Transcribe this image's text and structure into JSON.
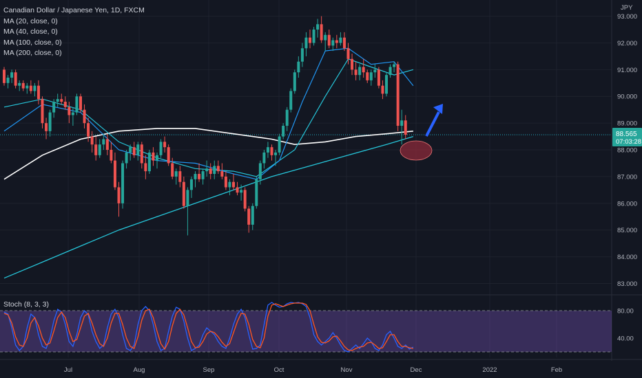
{
  "legend": {
    "title": "Canadian Dollar / Japanese Yen, 1D, FXCM",
    "ma20": "MA (20, close, 0)",
    "ma40": "MA (40, close, 0)",
    "ma100": "MA (100, close, 0)",
    "ma200": "MA (200, close, 0)"
  },
  "price_scale": {
    "unit": "JPY",
    "last_price": "88.565",
    "countdown": "07:03:28"
  },
  "stoch": {
    "label": "Stoch (8, 3, 3)"
  },
  "colors": {
    "up": "#26a69a",
    "down": "#ef5350",
    "ma20": "#2196f3",
    "ma40": "#26c6da",
    "ma100": "#ffffff",
    "ma200": "#26c6da",
    "stoch_k": "#2962ff",
    "stoch_d": "#ff5722",
    "stoch_band": "#7e57c2",
    "annotation_arrow": "#2962ff",
    "annotation_ellipse": "#8b2a3a"
  },
  "chart_data": {
    "type": "candlestick",
    "title": "Canadian Dollar / Japanese Yen, 1D, FXCM",
    "y_ticks": [
      "93.000",
      "92.000",
      "91.000",
      "90.000",
      "89.000",
      "88.000",
      "87.000",
      "86.000",
      "85.000",
      "84.000",
      "83.000"
    ],
    "y_tick_values": [
      93,
      92,
      91,
      90,
      89,
      88,
      87,
      86,
      85,
      84,
      83
    ],
    "ylim": [
      82.55,
      93.4
    ],
    "x_ticks": [
      "Jul",
      "Aug",
      "Sep",
      "Oct",
      "Nov",
      "Dec",
      "2022",
      "Feb"
    ],
    "candles": [
      [
        91.0,
        91.1,
        90.4,
        90.5
      ],
      [
        90.5,
        90.8,
        90.3,
        90.7
      ],
      [
        90.7,
        91.0,
        90.5,
        90.9
      ],
      [
        90.9,
        91.0,
        90.3,
        90.4
      ],
      [
        90.4,
        90.6,
        90.2,
        90.5
      ],
      [
        90.5,
        90.6,
        90.2,
        90.3
      ],
      [
        90.3,
        90.5,
        90.1,
        90.4
      ],
      [
        90.4,
        90.6,
        90.1,
        90.2
      ],
      [
        90.2,
        90.5,
        90.0,
        90.4
      ],
      [
        90.4,
        90.6,
        89.7,
        89.9
      ],
      [
        89.9,
        90.0,
        88.8,
        89.0
      ],
      [
        89.0,
        89.2,
        88.4,
        88.7
      ],
      [
        88.7,
        89.5,
        88.5,
        89.4
      ],
      [
        89.4,
        89.9,
        89.2,
        89.8
      ],
      [
        89.8,
        90.1,
        89.6,
        89.9
      ],
      [
        89.9,
        90.1,
        89.7,
        89.8
      ],
      [
        89.8,
        90.0,
        89.5,
        89.6
      ],
      [
        89.6,
        89.8,
        89.0,
        89.3
      ],
      [
        89.3,
        89.6,
        88.9,
        89.4
      ],
      [
        89.4,
        90.1,
        89.3,
        90.0
      ],
      [
        90.0,
        90.1,
        89.4,
        89.5
      ],
      [
        89.5,
        89.7,
        88.8,
        89.0
      ],
      [
        89.0,
        89.2,
        88.3,
        88.5
      ],
      [
        88.5,
        88.7,
        87.9,
        88.2
      ],
      [
        88.2,
        88.5,
        87.6,
        87.8
      ],
      [
        87.8,
        88.4,
        87.7,
        88.2
      ],
      [
        88.2,
        88.6,
        88.0,
        88.4
      ],
      [
        88.4,
        88.6,
        87.8,
        88.0
      ],
      [
        88.0,
        88.3,
        87.5,
        87.6
      ],
      [
        87.6,
        87.9,
        86.5,
        86.6
      ],
      [
        86.6,
        86.8,
        85.5,
        86.0
      ],
      [
        86.0,
        87.6,
        85.8,
        87.5
      ],
      [
        87.5,
        88.0,
        87.3,
        87.9
      ],
      [
        87.9,
        88.2,
        87.6,
        88.1
      ],
      [
        88.1,
        88.3,
        87.7,
        87.8
      ],
      [
        87.8,
        88.3,
        87.6,
        88.2
      ],
      [
        88.2,
        88.3,
        87.3,
        87.5
      ],
      [
        87.5,
        87.8,
        86.9,
        87.2
      ],
      [
        87.2,
        88.0,
        87.1,
        87.9
      ],
      [
        87.9,
        88.1,
        87.4,
        87.6
      ],
      [
        87.6,
        87.9,
        87.3,
        87.8
      ],
      [
        87.8,
        88.4,
        87.7,
        88.3
      ],
      [
        88.3,
        88.5,
        87.9,
        88.1
      ],
      [
        88.1,
        88.2,
        87.4,
        87.5
      ],
      [
        87.5,
        87.7,
        86.9,
        87.0
      ],
      [
        87.0,
        87.3,
        86.7,
        87.2
      ],
      [
        87.2,
        87.4,
        86.6,
        86.8
      ],
      [
        86.8,
        87.0,
        85.8,
        85.9
      ],
      [
        85.9,
        86.6,
        84.8,
        86.5
      ],
      [
        86.5,
        87.0,
        86.2,
        86.9
      ],
      [
        86.9,
        87.2,
        86.6,
        87.1
      ],
      [
        87.1,
        87.5,
        86.8,
        86.9
      ],
      [
        86.9,
        87.3,
        86.7,
        87.2
      ],
      [
        87.2,
        87.6,
        87.0,
        87.3
      ],
      [
        87.3,
        87.5,
        86.9,
        87.1
      ],
      [
        87.1,
        87.6,
        86.9,
        87.4
      ],
      [
        87.4,
        87.6,
        87.1,
        87.2
      ],
      [
        87.2,
        87.5,
        86.9,
        87.0
      ],
      [
        87.0,
        87.2,
        86.5,
        86.6
      ],
      [
        86.6,
        86.9,
        86.3,
        86.8
      ],
      [
        86.8,
        87.1,
        86.5,
        86.6
      ],
      [
        86.6,
        86.8,
        86.3,
        86.4
      ],
      [
        86.4,
        86.7,
        86.1,
        86.5
      ],
      [
        86.5,
        86.6,
        85.7,
        85.8
      ],
      [
        85.8,
        85.9,
        84.9,
        85.2
      ],
      [
        85.2,
        86.0,
        85.0,
        85.9
      ],
      [
        85.9,
        87.0,
        85.8,
        86.9
      ],
      [
        86.9,
        87.6,
        86.7,
        87.5
      ],
      [
        87.5,
        88.0,
        87.3,
        87.9
      ],
      [
        87.9,
        88.3,
        87.7,
        88.1
      ],
      [
        88.1,
        88.2,
        87.6,
        87.8
      ],
      [
        87.8,
        88.0,
        87.4,
        87.9
      ],
      [
        87.9,
        88.6,
        87.8,
        88.5
      ],
      [
        88.5,
        89.0,
        88.4,
        88.9
      ],
      [
        88.9,
        89.6,
        88.7,
        89.5
      ],
      [
        89.5,
        90.3,
        89.4,
        90.2
      ],
      [
        90.2,
        91.0,
        90.1,
        90.9
      ],
      [
        90.9,
        91.5,
        90.7,
        91.3
      ],
      [
        91.3,
        92.0,
        91.1,
        91.8
      ],
      [
        91.8,
        92.4,
        91.5,
        92.2
      ],
      [
        92.2,
        92.5,
        91.8,
        92.0
      ],
      [
        92.0,
        92.6,
        91.9,
        92.5
      ],
      [
        92.5,
        92.9,
        92.2,
        92.7
      ],
      [
        92.7,
        93.0,
        92.0,
        92.1
      ],
      [
        92.1,
        92.4,
        91.7,
        92.3
      ],
      [
        92.3,
        92.5,
        91.8,
        91.9
      ],
      [
        91.9,
        92.2,
        91.7,
        92.1
      ],
      [
        92.1,
        92.3,
        91.8,
        92.0
      ],
      [
        92.0,
        92.4,
        91.9,
        92.2
      ],
      [
        92.2,
        92.4,
        91.7,
        91.8
      ],
      [
        91.8,
        92.0,
        91.2,
        91.4
      ],
      [
        91.4,
        91.6,
        90.8,
        91.0
      ],
      [
        91.0,
        91.3,
        90.6,
        90.8
      ],
      [
        90.8,
        91.2,
        90.6,
        91.1
      ],
      [
        91.1,
        91.4,
        90.7,
        90.9
      ],
      [
        90.9,
        91.0,
        90.5,
        90.6
      ],
      [
        90.6,
        91.0,
        90.4,
        90.9
      ],
      [
        90.9,
        91.2,
        90.7,
        91.0
      ],
      [
        91.0,
        91.1,
        90.3,
        90.4
      ],
      [
        90.4,
        90.6,
        89.9,
        90.1
      ],
      [
        90.1,
        90.9,
        90.0,
        90.8
      ],
      [
        90.8,
        91.2,
        90.7,
        91.1
      ],
      [
        91.1,
        91.3,
        90.9,
        91.2
      ],
      [
        91.2,
        91.3,
        88.7,
        88.9
      ],
      [
        88.9,
        89.5,
        88.2,
        89.1
      ],
      [
        89.1,
        89.3,
        88.4,
        88.565
      ]
    ],
    "ma20": [
      [
        0,
        88.7
      ],
      [
        10,
        89.7
      ],
      [
        20,
        89.4
      ],
      [
        30,
        88.0
      ],
      [
        40,
        87.6
      ],
      [
        50,
        87.5
      ],
      [
        60,
        87.1
      ],
      [
        66,
        86.9
      ],
      [
        72,
        87.6
      ],
      [
        78,
        89.8
      ],
      [
        84,
        91.7
      ],
      [
        90,
        91.8
      ],
      [
        96,
        91.2
      ],
      [
        102,
        91.3
      ],
      [
        107,
        90.4
      ]
    ],
    "ma40": [
      [
        0,
        89.6
      ],
      [
        10,
        89.9
      ],
      [
        20,
        89.5
      ],
      [
        30,
        88.3
      ],
      [
        40,
        87.7
      ],
      [
        50,
        87.3
      ],
      [
        60,
        87.2
      ],
      [
        66,
        87.0
      ],
      [
        76,
        88.0
      ],
      [
        84,
        90.0
      ],
      [
        90,
        91.4
      ],
      [
        96,
        91.1
      ],
      [
        102,
        90.8
      ],
      [
        107,
        91.0
      ]
    ],
    "ma100": [
      [
        0,
        86.9
      ],
      [
        10,
        87.8
      ],
      [
        20,
        88.4
      ],
      [
        30,
        88.7
      ],
      [
        40,
        88.8
      ],
      [
        50,
        88.8
      ],
      [
        60,
        88.6
      ],
      [
        70,
        88.4
      ],
      [
        76,
        88.2
      ],
      [
        84,
        88.3
      ],
      [
        92,
        88.5
      ],
      [
        100,
        88.6
      ],
      [
        107,
        88.7
      ]
    ],
    "ma200": [
      [
        0,
        83.2
      ],
      [
        10,
        83.8
      ],
      [
        20,
        84.4
      ],
      [
        30,
        85.0
      ],
      [
        40,
        85.5
      ],
      [
        50,
        86.0
      ],
      [
        60,
        86.5
      ],
      [
        70,
        87.0
      ],
      [
        80,
        87.4
      ],
      [
        90,
        87.8
      ],
      [
        100,
        88.2
      ],
      [
        107,
        88.5
      ]
    ],
    "stoch_ticks": [
      "80.00",
      "40.00"
    ],
    "stoch_tick_values": [
      80,
      40
    ],
    "stoch_ylim": [
      12,
      100
    ],
    "stoch_band": [
      20,
      80
    ],
    "stoch_k": [
      78,
      75,
      55,
      30,
      22,
      28,
      55,
      75,
      70,
      45,
      28,
      25,
      40,
      65,
      82,
      78,
      60,
      35,
      28,
      45,
      70,
      80,
      74,
      50,
      35,
      25,
      30,
      55,
      75,
      82,
      70,
      45,
      25,
      22,
      30,
      60,
      80,
      86,
      80,
      60,
      35,
      22,
      25,
      50,
      72,
      85,
      82,
      65,
      40,
      22,
      25,
      30,
      45,
      55,
      50,
      45,
      35,
      28,
      25,
      40,
      60,
      75,
      82,
      70,
      45,
      24,
      25,
      30,
      60,
      88,
      92,
      88,
      85,
      86,
      90,
      92,
      91,
      92,
      90,
      86,
      70,
      45,
      35,
      30,
      35,
      40,
      48,
      40,
      30,
      22,
      20,
      25,
      30,
      25,
      32,
      40,
      35,
      25,
      22,
      30,
      45,
      50,
      40,
      28,
      25,
      30,
      24,
      27
    ],
    "stoch_d": [
      76,
      74,
      62,
      42,
      30,
      28,
      40,
      62,
      70,
      58,
      40,
      30,
      33,
      50,
      70,
      78,
      70,
      50,
      35,
      38,
      55,
      72,
      76,
      62,
      45,
      32,
      28,
      40,
      62,
      76,
      76,
      60,
      40,
      28,
      25,
      42,
      66,
      80,
      82,
      70,
      50,
      32,
      24,
      35,
      58,
      76,
      82,
      74,
      55,
      35,
      26,
      27,
      35,
      46,
      50,
      48,
      42,
      34,
      28,
      32,
      48,
      64,
      76,
      75,
      60,
      38,
      28,
      26,
      40,
      72,
      88,
      90,
      88,
      86,
      88,
      90,
      91,
      91,
      91,
      89,
      80,
      60,
      42,
      34,
      33,
      36,
      42,
      43,
      36,
      28,
      23,
      22,
      25,
      27,
      28,
      33,
      34,
      30,
      25,
      26,
      35,
      45,
      45,
      35,
      28,
      28,
      26,
      25
    ]
  }
}
